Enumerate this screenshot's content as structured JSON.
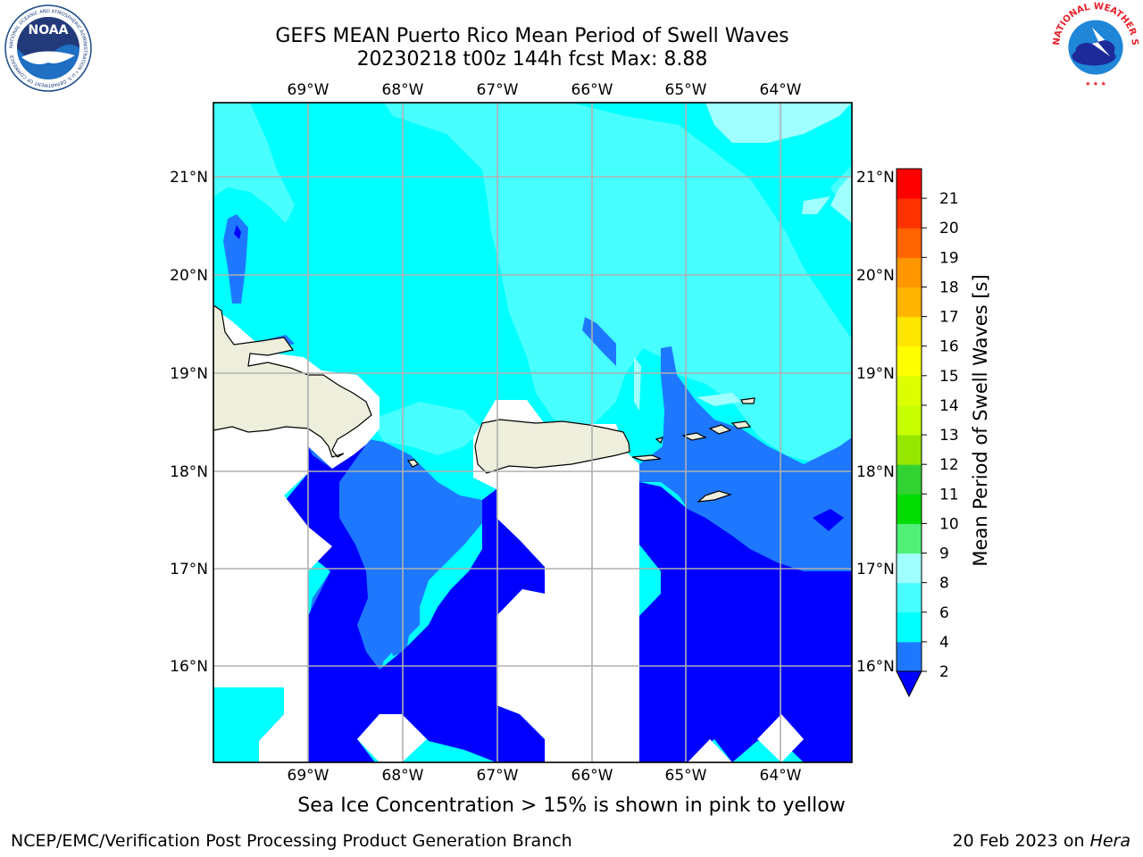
{
  "header": {
    "title_line1": "GEFS MEAN Puerto Rico Mean Period of Swell Waves",
    "title_line2": "20230218 t00z 144h fcst   Max: 8.88"
  },
  "logos": {
    "noaa_text": "NOAA",
    "noaa_ring_text": "NATIONAL OCEANIC AND ATMOSPHERIC ADMINISTRATION • U.S. DEPARTMENT OF COMMERCE",
    "nws_ring_text": "NATIONAL WEATHER SERVICE"
  },
  "map": {
    "lon_labels": [
      "69°W",
      "68°W",
      "67°W",
      "66°W",
      "65°W",
      "64°W"
    ],
    "lat_labels": [
      "21°N",
      "20°N",
      "19°N",
      "18°N",
      "17°N",
      "16°N"
    ],
    "colors": {
      "land": "#eeeedd",
      "grid": "#b0b0b0",
      "class_lt2": "#0000ff",
      "class_2_4": "#1e78ff",
      "class_4_6": "#00ffff",
      "class_6_8": "#48ffff",
      "class_8_9": "#a0ffff"
    }
  },
  "colorbar": {
    "label": "Mean Period of Swell Waves [s]",
    "ticks": [
      "2",
      "4",
      "6",
      "8",
      "9",
      "10",
      "11",
      "12",
      "13",
      "14",
      "15",
      "16",
      "17",
      "18",
      "19",
      "20",
      "21"
    ],
    "colors": [
      "#1e78ff",
      "#00ffff",
      "#48ffff",
      "#a0ffff",
      "#50f078",
      "#00dc00",
      "#32d232",
      "#96e600",
      "#c8ff00",
      "#dcff00",
      "#ffff00",
      "#ffe600",
      "#ffb400",
      "#ff9600",
      "#ff6400",
      "#ff3200",
      "#ff0000"
    ],
    "extend_color": "#0000ff"
  },
  "note": "Sea Ice Concentration > 15% is shown in pink to yellow",
  "footer": {
    "left": "NCEP/EMC/Verification Post Processing Product Generation Branch",
    "right_date": "20 Feb 2023 on",
    "right_host": "Hera"
  }
}
